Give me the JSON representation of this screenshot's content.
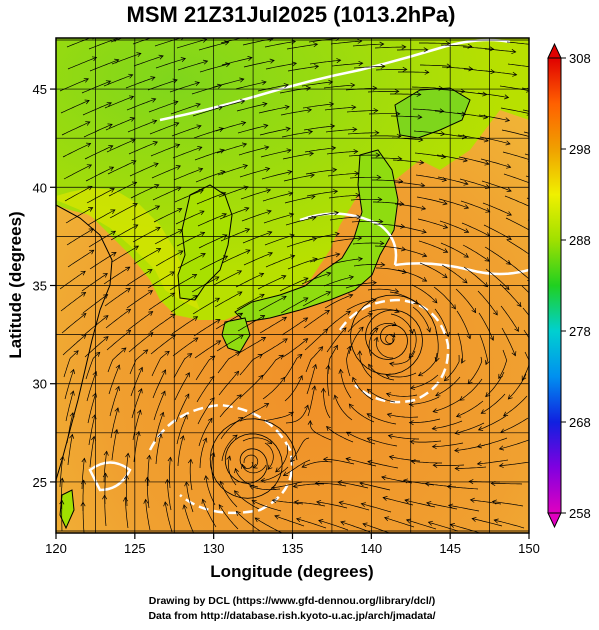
{
  "chart_data": {
    "type": "heatmap",
    "title": "MSM 21Z31Jul2025 (1013.2hPa)",
    "xlabel": "Longitude (degrees)",
    "ylabel": "Latitude  (degrees)",
    "xlim": [
      120,
      150
    ],
    "ylim": [
      22.4,
      47.6
    ],
    "x_ticks": [
      120,
      125,
      130,
      135,
      140,
      145,
      150
    ],
    "y_ticks": [
      25,
      30,
      35,
      40,
      45
    ],
    "grid": true,
    "colorbar": {
      "range": [
        258,
        308
      ],
      "ticks": [
        258,
        268,
        278,
        288,
        298,
        308
      ],
      "stops": [
        "#e000c0",
        "#8000e0",
        "#1020e0",
        "#0090f0",
        "#00d0d0",
        "#20d020",
        "#a0e000",
        "#f0f000",
        "#f0a000",
        "#ff6000",
        "#e00000"
      ],
      "placement": "right"
    },
    "features": {
      "land_color": "#9ee000",
      "sea_warm_color": "#f09030",
      "vortex_centers": [
        {
          "lon": 141.2,
          "lat": 32.3
        },
        {
          "lon": 132.3,
          "lat": 26.0
        }
      ]
    }
  },
  "credits": {
    "line1": "Drawing by DCL (https://www.gfd-dennou.org/library/dcl/)",
    "line2": "Data from http://database.rish.kyoto-u.ac.jp/arch/jmadata/"
  }
}
